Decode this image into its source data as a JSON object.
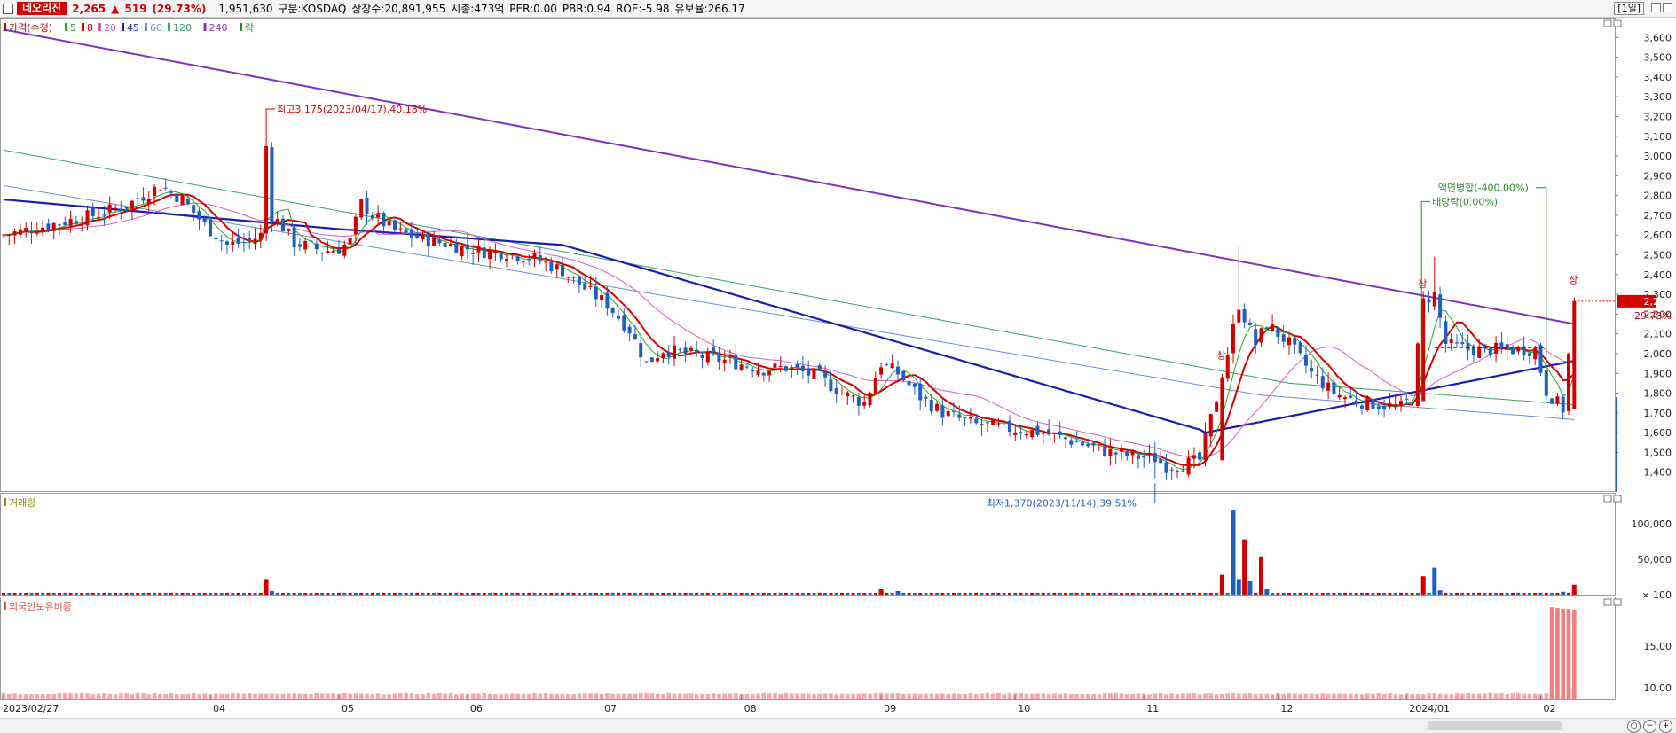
{
  "header": {
    "stock_name": "네오리진",
    "price": "2,265",
    "change_arrow": "▲",
    "change": "519",
    "change_pct": "(29.73%)",
    "volume": "1,951,630",
    "market": "구분:KOSDAQ",
    "listed_shares": "상장수:20,891,955",
    "market_cap": "시총:473억",
    "per": "PER:0.00",
    "pbr": "PBR:0.94",
    "roe": "ROE:-5.98",
    "reserve": "유보율:266.17",
    "period": "[1일]"
  },
  "legend": {
    "price_label": "가격(수정)",
    "ma5": "5",
    "ma8": "8",
    "ma20": "20",
    "ma45": "45",
    "ma60": "60",
    "ma120": "120",
    "ma240": "240",
    "drop": "락",
    "volume_label": "거래량",
    "foreign_label": "외국인보유비중"
  },
  "annotations": {
    "high": "최고3,175(2023/04/17),40.18%",
    "low": "최저1,370(2023/11/14),39.51%",
    "dividend": "배당락(0.00%)",
    "split": "액면병합(-400.00%)",
    "limit_up": "상",
    "current_price_tag": "2,265",
    "current_pct_tag": "29.73%"
  },
  "colors": {
    "up": "#d40000",
    "down": "#1f5fbf",
    "ma5": "#22aa22",
    "ma8": "#d40000",
    "ma20": "#d060c0",
    "ma45": "#1c1cb0",
    "ma60": "#6a8fd0",
    "ma120": "#3aa070",
    "ma240": "#8030c0"
  },
  "chart_data": [
    {
      "type": "candlestick",
      "title": "",
      "ylim": [
        1300,
        3700
      ],
      "y_ticks": [
        "3,600",
        "3,500",
        "3,400",
        "3,300",
        "3,200",
        "3,100",
        "3,000",
        "2,900",
        "2,800",
        "2,700",
        "2,600",
        "2,500",
        "2,400",
        "2,300",
        "2,200",
        "2,100",
        "2,000",
        "1,900",
        "1,800",
        "1,700",
        "1,600",
        "1,500",
        "1,400"
      ],
      "x_labels": [
        "2023/02/27",
        "04",
        "05",
        "06",
        "07",
        "08",
        "09",
        "10",
        "11",
        "12",
        "2024/01",
        "02"
      ],
      "close_path": [
        [
          0,
          2600
        ],
        [
          8,
          2650
        ],
        [
          16,
          2700
        ],
        [
          22,
          2750
        ],
        [
          28,
          2850
        ],
        [
          32,
          2780
        ],
        [
          36,
          2650
        ],
        [
          40,
          2550
        ],
        [
          44,
          2570
        ],
        [
          46,
          2600
        ],
        [
          47,
          3050
        ],
        [
          48,
          2700
        ],
        [
          50,
          2640
        ],
        [
          52,
          2560
        ],
        [
          55,
          2540
        ],
        [
          57,
          2520
        ],
        [
          60,
          2530
        ],
        [
          62,
          2570
        ],
        [
          64,
          2760
        ],
        [
          66,
          2700
        ],
        [
          70,
          2620
        ],
        [
          75,
          2580
        ],
        [
          80,
          2550
        ],
        [
          85,
          2520
        ],
        [
          90,
          2510
        ],
        [
          95,
          2480
        ],
        [
          100,
          2420
        ],
        [
          104,
          2330
        ],
        [
          108,
          2250
        ],
        [
          112,
          2120
        ],
        [
          115,
          1950
        ],
        [
          118,
          2020
        ],
        [
          124,
          1990
        ],
        [
          130,
          1960
        ],
        [
          136,
          1920
        ],
        [
          140,
          1930
        ],
        [
          146,
          1880
        ],
        [
          150,
          1800
        ],
        [
          154,
          1750
        ],
        [
          157,
          1950
        ],
        [
          160,
          1900
        ],
        [
          164,
          1780
        ],
        [
          168,
          1700
        ],
        [
          174,
          1640
        ],
        [
          180,
          1620
        ],
        [
          186,
          1600
        ],
        [
          192,
          1550
        ],
        [
          198,
          1500
        ],
        [
          202,
          1480
        ],
        [
          206,
          1470
        ],
        [
          208,
          1430
        ],
        [
          211,
          1440
        ],
        [
          214,
          1460
        ],
        [
          218,
          1880
        ],
        [
          221,
          2250
        ],
        [
          224,
          2050
        ],
        [
          226,
          2150
        ],
        [
          230,
          2050
        ],
        [
          234,
          1900
        ],
        [
          238,
          1800
        ],
        [
          242,
          1760
        ],
        [
          246,
          1740
        ],
        [
          250,
          1730
        ],
        [
          252,
          1780
        ],
        [
          254,
          2270
        ],
        [
          256,
          2300
        ],
        [
          258,
          2050
        ],
        [
          262,
          2020
        ],
        [
          268,
          2020
        ],
        [
          274,
          2020
        ],
        [
          276,
          1810
        ],
        [
          279,
          1720
        ],
        [
          281,
          2265
        ]
      ],
      "series_info": [
        {
          "name": "5",
          "last": 1950
        },
        {
          "name": "8",
          "last": 1950
        },
        {
          "name": "20",
          "last": 1950
        },
        {
          "name": "45",
          "last": 1950
        },
        {
          "name": "240",
          "last": 2140
        }
      ],
      "high": 3175,
      "low": 1370,
      "last": 2265,
      "change_pct": 29.73
    },
    {
      "type": "bar",
      "title": "",
      "ylabel": "",
      "y_ticks": [
        "100,000",
        "50,000",
        "100"
      ],
      "ylim": [
        0,
        130000
      ],
      "spikes": [
        {
          "x": 47,
          "value": 22000,
          "dir": "up"
        },
        {
          "x": 48,
          "value": 5000,
          "dir": "down"
        },
        {
          "x": 157,
          "value": 8000,
          "dir": "up"
        },
        {
          "x": 160,
          "value": 5000,
          "dir": "down"
        },
        {
          "x": 218,
          "value": 28000,
          "dir": "up"
        },
        {
          "x": 220,
          "value": 120000,
          "dir": "down"
        },
        {
          "x": 221,
          "value": 22000,
          "dir": "down"
        },
        {
          "x": 222,
          "value": 78000,
          "dir": "up"
        },
        {
          "x": 223,
          "value": 20000,
          "dir": "down"
        },
        {
          "x": 225,
          "value": 54000,
          "dir": "up"
        },
        {
          "x": 226,
          "value": 8000,
          "dir": "down"
        },
        {
          "x": 254,
          "value": 26000,
          "dir": "up"
        },
        {
          "x": 256,
          "value": 38000,
          "dir": "down"
        },
        {
          "x": 257,
          "value": 6000,
          "dir": "down"
        },
        {
          "x": 279,
          "value": 4000,
          "dir": "down"
        },
        {
          "x": 281,
          "value": 14000,
          "dir": "up"
        }
      ]
    },
    {
      "type": "bar",
      "title": "",
      "ylabel": "",
      "y_ticks": [
        "15.00",
        "10.00"
      ],
      "ylim": [
        8.5,
        21
      ],
      "base_value": 9.3,
      "tail": [
        {
          "x": 277,
          "value": 19.7
        },
        {
          "x": 278,
          "value": 19.6
        },
        {
          "x": 279,
          "value": 19.5
        },
        {
          "x": 280,
          "value": 19.5
        },
        {
          "x": 281,
          "value": 19.4
        }
      ]
    }
  ]
}
